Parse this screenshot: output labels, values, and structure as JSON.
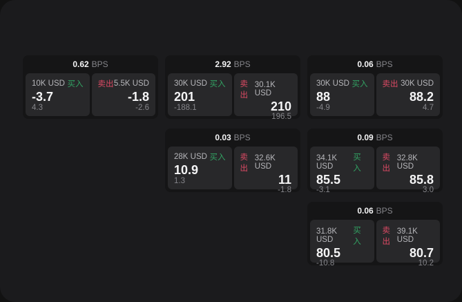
{
  "labels": {
    "bps_unit": "BPS",
    "buy": "买入",
    "sell": "卖出"
  },
  "colors": {
    "window_bg": "#1b1b1d",
    "card_bg": "#151516",
    "cell_bg": "#28282a",
    "buy": "#32a263",
    "sell": "#dc4a64",
    "value_text": "#f5f5f6",
    "amount_text": "#b6b6ba",
    "muted_text": "#85858a"
  },
  "cards": [
    {
      "bps": "0.62",
      "buy": {
        "amount": "10K USD",
        "value": "-3.7",
        "sub": "4.3"
      },
      "sell": {
        "amount": "5.5K USD",
        "value": "-1.8",
        "sub": "-2.6"
      }
    },
    {
      "bps": "2.92",
      "buy": {
        "amount": "30K USD",
        "value": "201",
        "sub": "-188.1"
      },
      "sell": {
        "amount": "30.1K USD",
        "value": "210",
        "sub": "196.5"
      }
    },
    {
      "bps": "0.03",
      "buy": {
        "amount": "28K USD",
        "value": "10.9",
        "sub": "1.3"
      },
      "sell": {
        "amount": "32.6K USD",
        "value": "11",
        "sub": "-1.8"
      }
    },
    {
      "bps": "0.06",
      "buy": {
        "amount": "30K USD",
        "value": "88",
        "sub": "-4.9"
      },
      "sell": {
        "amount": "30K USD",
        "value": "88.2",
        "sub": "4.7"
      }
    },
    {
      "bps": "0.09",
      "buy": {
        "amount": "34.1K USD",
        "value": "85.5",
        "sub": "-3.1"
      },
      "sell": {
        "amount": "32.8K USD",
        "value": "85.8",
        "sub": "3.0"
      }
    },
    {
      "bps": "0.06",
      "buy": {
        "amount": "31.8K USD",
        "value": "80.5",
        "sub": "-10.8"
      },
      "sell": {
        "amount": "39.1K USD",
        "value": "80.7",
        "sub": "10.2"
      }
    }
  ]
}
